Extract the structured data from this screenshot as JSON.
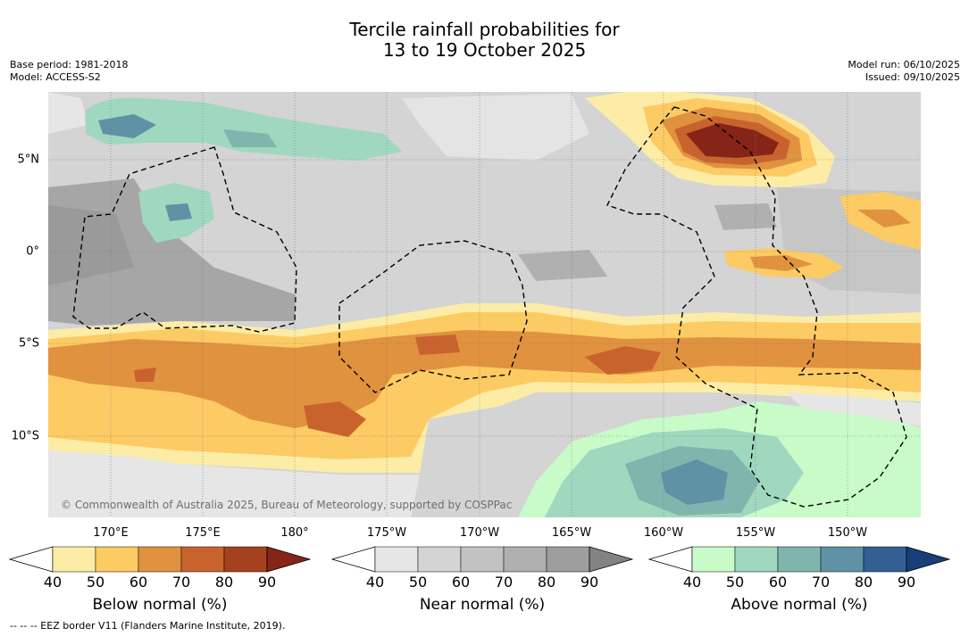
{
  "title_line1": "Tercile rainfall probabilities for",
  "title_line2": "13 to 19 October 2025",
  "base_period": "Base period: 1981-2018",
  "model": "Model: ACCESS-S2",
  "model_run": "Model run: 06/10/2025",
  "issued": "Issued: 09/10/2025",
  "lon_labels": [
    "170°E",
    "175°E",
    "180°",
    "175°W",
    "170°W",
    "165°W",
    "160°W",
    "155°W",
    "150°W"
  ],
  "lat_labels": [
    "5°N",
    "0°",
    "5°S",
    "10°S"
  ],
  "copyright": "© Commonwealth of Australia 2025, Bureau of Meteorology, supported by COSPPac",
  "footnote": "--  --  -- EEZ border V11 (Flanders Marine Institute, 2019).",
  "colorbars": [
    {
      "title": "Below normal (%)",
      "ticks": [
        "40",
        "50",
        "60",
        "70",
        "80",
        "90"
      ],
      "colors": [
        "#ffffff",
        "#fdeca6",
        "#fccb64",
        "#e0923f",
        "#c9632e",
        "#a6411f",
        "#872418"
      ]
    },
    {
      "title": "Near normal (%)",
      "ticks": [
        "40",
        "50",
        "60",
        "70",
        "80",
        "90"
      ],
      "colors": [
        "#ffffff",
        "#e6e6e6",
        "#d4d4d4",
        "#c2c2c2",
        "#b0b0b0",
        "#9e9e9e",
        "#838383"
      ]
    },
    {
      "title": "Above normal (%)",
      "ticks": [
        "40",
        "50",
        "60",
        "70",
        "80",
        "90"
      ],
      "colors": [
        "#ffffff",
        "#c8fbc8",
        "#9fd8bf",
        "#80b5ae",
        "#5e92a4",
        "#335f93",
        "#1a3e78"
      ]
    }
  ]
}
